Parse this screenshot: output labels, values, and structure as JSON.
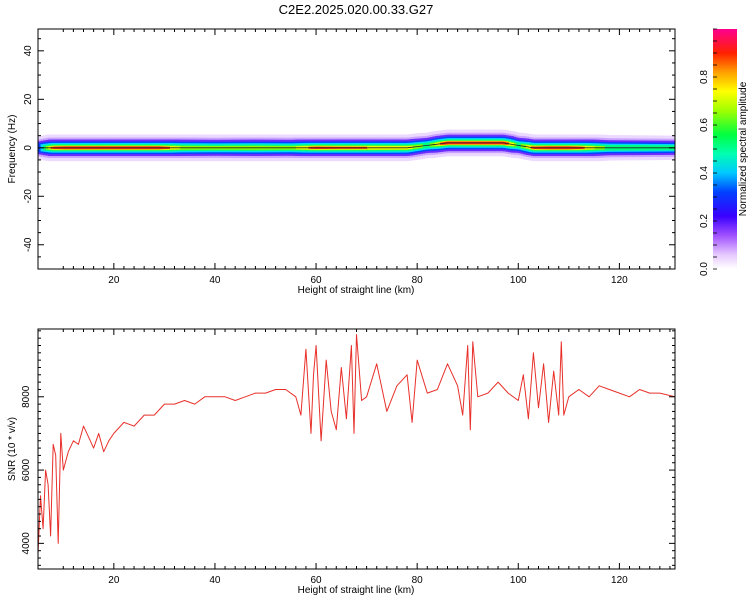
{
  "title": "C2E2.2025.020.00.33.G27",
  "colors": {
    "snr_line": "#e8302a",
    "frame": "#000000",
    "background": "#ffffff"
  },
  "chart_data": [
    {
      "type": "heatmap",
      "panel": "top",
      "title": "C2E2.2025.020.00.33.G27",
      "xlabel": "Height of straight line (km)",
      "ylabel": "Frequency (Hz)",
      "xlim": [
        5,
        131
      ],
      "ylim": [
        -50,
        49
      ],
      "x_ticks": [
        20,
        40,
        60,
        80,
        100,
        120
      ],
      "y_ticks": [
        -40,
        -20,
        0,
        20,
        40
      ],
      "colorbar": {
        "label": "Normalized spectral amplitude",
        "range": [
          0,
          1
        ],
        "ticks": [
          0.0,
          0.2,
          0.4,
          0.6,
          0.8
        ],
        "colormap": "rainbow (white-purple-blue-cyan-green-yellow-orange-red-magenta)"
      },
      "ridge": [
        {
          "x": 5,
          "freq": 0,
          "amp": 0.35
        },
        {
          "x": 8,
          "freq": 0,
          "amp": 0.9
        },
        {
          "x": 12,
          "freq": 0,
          "amp": 1.0
        },
        {
          "x": 20,
          "freq": 0,
          "amp": 1.0
        },
        {
          "x": 28,
          "freq": 0,
          "amp": 1.0
        },
        {
          "x": 33,
          "freq": 0,
          "amp": 0.75
        },
        {
          "x": 40,
          "freq": 0,
          "amp": 0.7
        },
        {
          "x": 48,
          "freq": 0,
          "amp": 0.75
        },
        {
          "x": 55,
          "freq": 0,
          "amp": 0.7
        },
        {
          "x": 60,
          "freq": 0,
          "amp": 0.9
        },
        {
          "x": 65,
          "freq": 0,
          "amp": 0.85
        },
        {
          "x": 70,
          "freq": 0,
          "amp": 0.85
        },
        {
          "x": 78,
          "freq": 0,
          "amp": 0.8
        },
        {
          "x": 82,
          "freq": 1,
          "amp": 0.6
        },
        {
          "x": 86,
          "freq": 2,
          "amp": 1.0
        },
        {
          "x": 92,
          "freq": 2,
          "amp": 1.0
        },
        {
          "x": 97,
          "freq": 2,
          "amp": 1.0
        },
        {
          "x": 100,
          "freq": 1,
          "amp": 0.6
        },
        {
          "x": 103,
          "freq": 0,
          "amp": 0.9
        },
        {
          "x": 108,
          "freq": 0,
          "amp": 1.0
        },
        {
          "x": 112,
          "freq": 0,
          "amp": 0.9
        },
        {
          "x": 118,
          "freq": 0,
          "amp": 0.6
        },
        {
          "x": 125,
          "freq": 0,
          "amp": 0.55
        },
        {
          "x": 131,
          "freq": 0,
          "amp": 0.5
        }
      ]
    },
    {
      "type": "line",
      "panel": "bottom",
      "xlabel": "Height of straight line (km)",
      "ylabel": "SNR (10 * v/v)",
      "xlim": [
        5,
        131
      ],
      "ylim": [
        3300,
        9850
      ],
      "x_ticks": [
        20,
        40,
        60,
        80,
        100,
        120
      ],
      "y_ticks": [
        4000,
        6000,
        8000
      ],
      "series": [
        {
          "color": "#e8302a",
          "x": [
            5.0,
            5.5,
            6.0,
            6.5,
            7.0,
            7.5,
            8.0,
            8.5,
            9.0,
            9.5,
            10.0,
            11.0,
            12.0,
            13.0,
            14.0,
            15.0,
            16.0,
            17.0,
            18.0,
            19.0,
            20.0,
            22.0,
            24.0,
            26.0,
            28.0,
            30.0,
            32.0,
            34.0,
            36.0,
            38.0,
            40.0,
            42.0,
            44.0,
            46.0,
            48.0,
            50.0,
            52.0,
            54.0,
            56.0,
            57.0,
            58.0,
            59.0,
            59.5,
            60.0,
            61.0,
            62.0,
            63.0,
            64.0,
            65.0,
            66.0,
            67.0,
            67.5,
            68.0,
            69.0,
            70.0,
            72.0,
            74.0,
            76.0,
            78.0,
            79.0,
            80.0,
            82.0,
            84.0,
            86.0,
            88.0,
            89.0,
            90.0,
            90.5,
            91.0,
            92.0,
            94.0,
            96.0,
            98.0,
            100.0,
            101.0,
            102.0,
            103.0,
            104.0,
            105.0,
            106.0,
            107.0,
            108.0,
            108.5,
            109.0,
            110.0,
            112.0,
            114.0,
            116.0,
            118.0,
            120.0,
            122.0,
            124.0,
            126.0,
            128.0,
            131.0
          ],
          "y": [
            3700,
            5300,
            4400,
            6000,
            5600,
            4200,
            6700,
            6400,
            4000,
            7000,
            6000,
            6500,
            6800,
            6700,
            7200,
            6900,
            6600,
            7000,
            6500,
            6800,
            7000,
            7300,
            7200,
            7500,
            7500,
            7800,
            7800,
            7900,
            7800,
            8000,
            8000,
            8000,
            7900,
            8000,
            8100,
            8100,
            8200,
            8200,
            8000,
            7500,
            9300,
            7000,
            8600,
            9400,
            6800,
            9000,
            7600,
            7100,
            8800,
            7400,
            9400,
            7000,
            9700,
            7900,
            8000,
            8900,
            7600,
            8300,
            8600,
            7300,
            9000,
            8100,
            8200,
            8900,
            8300,
            7500,
            9400,
            7100,
            9500,
            8000,
            8100,
            8400,
            8100,
            7900,
            8600,
            7400,
            9200,
            7700,
            8900,
            7300,
            8700,
            7500,
            9500,
            7500,
            8000,
            8200,
            8000,
            8300,
            8200,
            8100,
            8000,
            8200,
            8100,
            8100,
            8000
          ]
        }
      ]
    }
  ]
}
